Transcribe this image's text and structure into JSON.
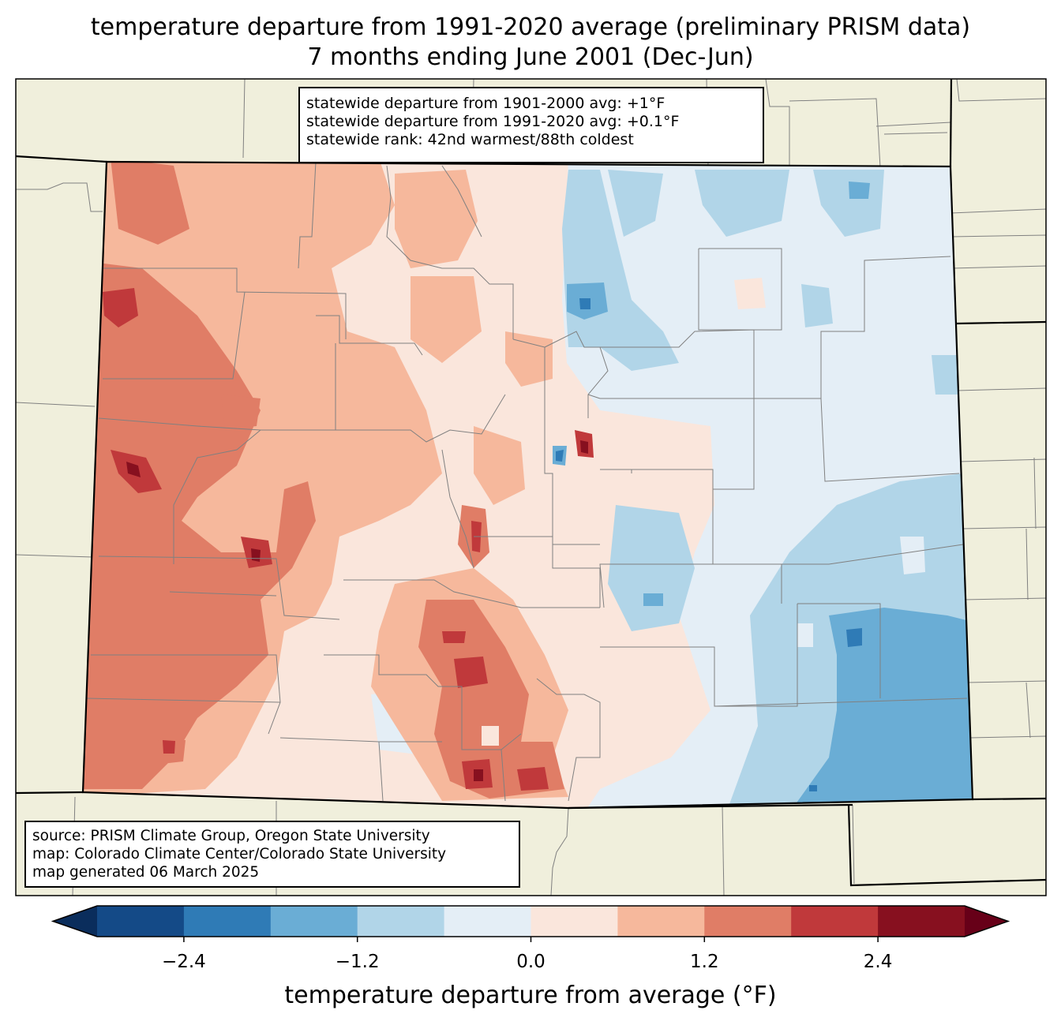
{
  "title": {
    "line1": "temperature departure from 1991-2020 average (preliminary PRISM data)",
    "line2": "7 months ending June 2001 (Dec-Jun)"
  },
  "stats": {
    "line1": "statewide departure from 1901-2000 avg: +1°F",
    "line2": "statewide departure from 1991-2020 avg: +0.1°F",
    "line3": "statewide rank: 42nd warmest/88th coldest"
  },
  "source": {
    "line1": "source: PRISM Climate Group, Oregon State University",
    "line2": "map: Colorado Climate Center/Colorado State University",
    "line3": "map generated 06 March 2025"
  },
  "colorbar": {
    "label": "temperature departure from average (°F)",
    "ticks": [
      "−2.4",
      "−1.2",
      "0.0",
      "1.2",
      "2.4"
    ],
    "tick_values": [
      -2.4,
      -1.2,
      0.0,
      1.2,
      2.4
    ],
    "range": [
      -3.0,
      3.0
    ],
    "bin_edges": [
      -3.0,
      -2.4,
      -1.8,
      -1.2,
      -0.6,
      0.0,
      0.6,
      1.2,
      1.8,
      2.4,
      3.0
    ],
    "colors": [
      "#144a87",
      "#2f7bb6",
      "#6aadd5",
      "#b1d5e8",
      "#e4eef6",
      "#fae6dc",
      "#f6b89c",
      "#e07d66",
      "#c0393b",
      "#87101f"
    ],
    "under_color": "#0a2d5c",
    "over_color": "#670018"
  },
  "map_colors": {
    "land": "#f0efdc",
    "state_border": "#000000",
    "county_border": "#808080"
  }
}
